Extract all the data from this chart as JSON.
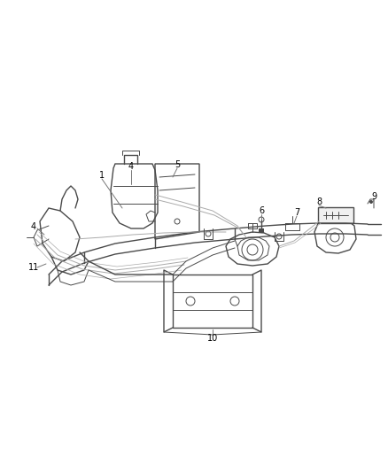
{
  "bg_color": "#ffffff",
  "line_color": "#4a4a4a",
  "gray_color": "#777777",
  "light_gray": "#aaaaaa",
  "label_color": "#000000",
  "figsize": [
    4.38,
    5.33
  ],
  "dpi": 100
}
